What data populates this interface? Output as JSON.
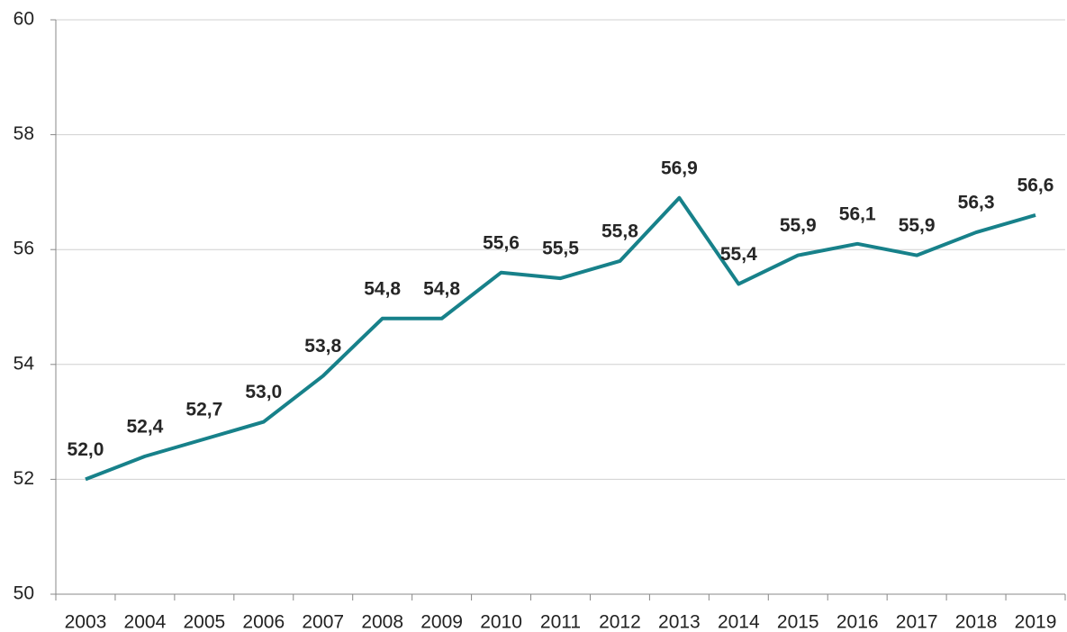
{
  "chart_data": {
    "type": "line",
    "categories": [
      "2003",
      "2004",
      "2005",
      "2006",
      "2007",
      "2008",
      "2009",
      "2010",
      "2011",
      "2012",
      "2013",
      "2014",
      "2015",
      "2016",
      "2017",
      "2018",
      "2019"
    ],
    "values": [
      52.0,
      52.4,
      52.7,
      53.0,
      53.8,
      54.8,
      54.8,
      55.6,
      55.5,
      55.8,
      56.9,
      55.4,
      55.9,
      56.1,
      55.9,
      56.3,
      56.6
    ],
    "value_labels": [
      "52,0",
      "52,4",
      "52,7",
      "53,0",
      "53,8",
      "54,8",
      "54,8",
      "55,6",
      "55,5",
      "55,8",
      "56,9",
      "55,4",
      "55,9",
      "56,1",
      "55,9",
      "56,3",
      "56,6"
    ],
    "color": "#17818a",
    "ylim": [
      50,
      60
    ],
    "yticks": [
      50,
      52,
      54,
      56,
      58,
      60
    ],
    "grid": true
  }
}
